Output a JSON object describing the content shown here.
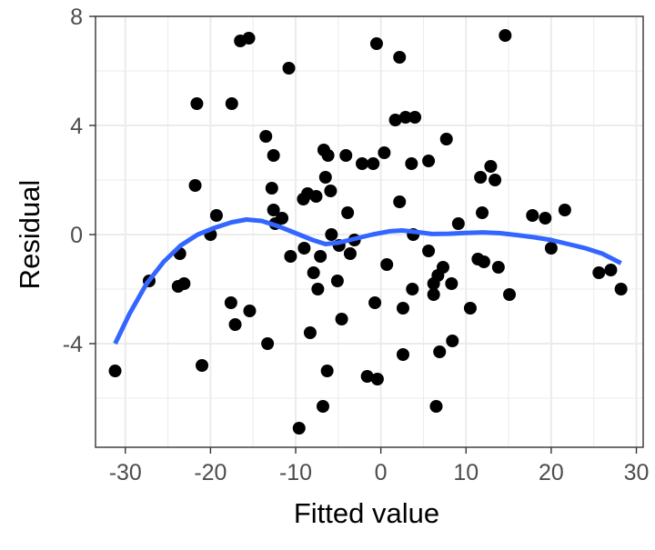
{
  "chart_data": {
    "type": "scatter",
    "xlabel": "Fitted value",
    "ylabel": "Residual",
    "xlim": [
      -33.5,
      30.8
    ],
    "ylim": [
      -7.8,
      8.0
    ],
    "x_ticks": [
      -30,
      -20,
      -10,
      0,
      10,
      20,
      30
    ],
    "x_tick_labels": [
      "-30",
      "-20",
      "-10",
      "0",
      "10",
      "20",
      "30"
    ],
    "y_ticks": [
      -4,
      0,
      4,
      8
    ],
    "y_tick_labels": [
      "-4",
      "0",
      "4",
      "8"
    ],
    "x_minor_gridlines": [
      -25,
      -15,
      -5,
      5,
      15,
      25
    ],
    "y_minor_gridlines": [
      -6,
      -2,
      2,
      6
    ],
    "grid": true,
    "legend": "none",
    "colors": {
      "points": "#000000",
      "smooth": "#3366FF",
      "grid": "#EBEBEB",
      "panel_border": "#333333"
    },
    "points": [
      {
        "x": -31.2,
        "y": -5.0
      },
      {
        "x": -27.2,
        "y": -1.7
      },
      {
        "x": -23.8,
        "y": -1.9
      },
      {
        "x": -23.6,
        "y": -0.7
      },
      {
        "x": -23.1,
        "y": -1.8
      },
      {
        "x": -21.8,
        "y": 1.8
      },
      {
        "x": -21.6,
        "y": 4.8
      },
      {
        "x": -21.0,
        "y": -4.8
      },
      {
        "x": -20.0,
        "y": 0.0
      },
      {
        "x": -19.3,
        "y": 0.7
      },
      {
        "x": -17.6,
        "y": -2.5
      },
      {
        "x": -17.5,
        "y": 4.8
      },
      {
        "x": -17.1,
        "y": -3.3
      },
      {
        "x": -16.5,
        "y": 7.1
      },
      {
        "x": -15.5,
        "y": 7.2
      },
      {
        "x": -15.4,
        "y": -2.8
      },
      {
        "x": -13.5,
        "y": 3.6
      },
      {
        "x": -13.3,
        "y": -4.0
      },
      {
        "x": -12.8,
        "y": 1.7
      },
      {
        "x": -12.6,
        "y": 2.9
      },
      {
        "x": -12.6,
        "y": 0.9
      },
      {
        "x": -12.4,
        "y": 0.4
      },
      {
        "x": -11.6,
        "y": 0.6
      },
      {
        "x": -10.8,
        "y": 6.1
      },
      {
        "x": -10.6,
        "y": -0.8
      },
      {
        "x": -9.6,
        "y": -7.1
      },
      {
        "x": -9.1,
        "y": 1.3
      },
      {
        "x": -9.0,
        "y": -0.5
      },
      {
        "x": -8.6,
        "y": 1.5
      },
      {
        "x": -8.3,
        "y": -3.6
      },
      {
        "x": -7.9,
        "y": -1.4
      },
      {
        "x": -7.6,
        "y": 1.4
      },
      {
        "x": -7.4,
        "y": -2.0
      },
      {
        "x": -7.1,
        "y": -0.8
      },
      {
        "x": -6.8,
        "y": -6.3
      },
      {
        "x": -6.7,
        "y": 3.1
      },
      {
        "x": -6.5,
        "y": 2.1
      },
      {
        "x": -6.3,
        "y": -5.0
      },
      {
        "x": -6.2,
        "y": 2.9
      },
      {
        "x": -5.9,
        "y": 1.6
      },
      {
        "x": -5.8,
        "y": 0.0
      },
      {
        "x": -5.1,
        "y": -1.7
      },
      {
        "x": -4.9,
        "y": -0.4
      },
      {
        "x": -4.6,
        "y": -3.1
      },
      {
        "x": -4.1,
        "y": 2.9
      },
      {
        "x": -3.9,
        "y": 0.8
      },
      {
        "x": -3.6,
        "y": -0.7
      },
      {
        "x": -3.1,
        "y": -0.2
      },
      {
        "x": -2.2,
        "y": 2.6
      },
      {
        "x": -1.6,
        "y": -5.2
      },
      {
        "x": -0.9,
        "y": 2.6
      },
      {
        "x": -0.7,
        "y": -2.5
      },
      {
        "x": -0.5,
        "y": 7.0
      },
      {
        "x": -0.4,
        "y": -5.3
      },
      {
        "x": 0.4,
        "y": 3.0
      },
      {
        "x": 0.7,
        "y": -1.1
      },
      {
        "x": 1.7,
        "y": 4.2
      },
      {
        "x": 2.2,
        "y": 6.5
      },
      {
        "x": 2.2,
        "y": 1.2
      },
      {
        "x": 2.6,
        "y": -2.7
      },
      {
        "x": 2.6,
        "y": -4.4
      },
      {
        "x": 2.9,
        "y": 4.3
      },
      {
        "x": 3.6,
        "y": 2.6
      },
      {
        "x": 3.7,
        "y": -2.0
      },
      {
        "x": 3.8,
        "y": 0.0
      },
      {
        "x": 4.0,
        "y": 4.3
      },
      {
        "x": 5.6,
        "y": -0.6
      },
      {
        "x": 5.6,
        "y": 2.7
      },
      {
        "x": 6.2,
        "y": -2.2
      },
      {
        "x": 6.2,
        "y": -1.8
      },
      {
        "x": 6.5,
        "y": -6.3
      },
      {
        "x": 6.7,
        "y": -1.5
      },
      {
        "x": 6.9,
        "y": -4.3
      },
      {
        "x": 7.3,
        "y": -1.2
      },
      {
        "x": 7.7,
        "y": 3.5
      },
      {
        "x": 8.3,
        "y": -1.8
      },
      {
        "x": 8.4,
        "y": -3.9
      },
      {
        "x": 9.1,
        "y": 0.4
      },
      {
        "x": 10.5,
        "y": -2.7
      },
      {
        "x": 11.4,
        "y": -0.9
      },
      {
        "x": 11.7,
        "y": 2.1
      },
      {
        "x": 11.9,
        "y": 0.8
      },
      {
        "x": 12.1,
        "y": -1.0
      },
      {
        "x": 12.9,
        "y": 2.5
      },
      {
        "x": 13.4,
        "y": 2.0
      },
      {
        "x": 13.8,
        "y": -1.2
      },
      {
        "x": 14.6,
        "y": 7.3
      },
      {
        "x": 15.1,
        "y": -2.2
      },
      {
        "x": 17.8,
        "y": 0.7
      },
      {
        "x": 19.3,
        "y": 0.6
      },
      {
        "x": 20.0,
        "y": -0.5
      },
      {
        "x": 21.6,
        "y": 0.9
      },
      {
        "x": 25.6,
        "y": -1.4
      },
      {
        "x": 27.0,
        "y": -1.3
      },
      {
        "x": 28.2,
        "y": -2.0
      }
    ],
    "smooth_line": [
      {
        "x": -31.2,
        "y": -4.0
      },
      {
        "x": -29.5,
        "y": -2.9
      },
      {
        "x": -27.5,
        "y": -1.8
      },
      {
        "x": -25.5,
        "y": -1.0
      },
      {
        "x": -23.5,
        "y": -0.4
      },
      {
        "x": -21.5,
        "y": 0.0
      },
      {
        "x": -19.5,
        "y": 0.25
      },
      {
        "x": -17.5,
        "y": 0.45
      },
      {
        "x": -15.8,
        "y": 0.55
      },
      {
        "x": -14.0,
        "y": 0.5
      },
      {
        "x": -12.0,
        "y": 0.3
      },
      {
        "x": -10.0,
        "y": 0.05
      },
      {
        "x": -8.0,
        "y": -0.2
      },
      {
        "x": -6.5,
        "y": -0.35
      },
      {
        "x": -5.0,
        "y": -0.3
      },
      {
        "x": -3.0,
        "y": -0.15
      },
      {
        "x": -1.0,
        "y": 0.0
      },
      {
        "x": 1.0,
        "y": 0.12
      },
      {
        "x": 2.5,
        "y": 0.15
      },
      {
        "x": 4.0,
        "y": 0.1
      },
      {
        "x": 6.0,
        "y": 0.02
      },
      {
        "x": 8.0,
        "y": 0.03
      },
      {
        "x": 10.0,
        "y": 0.06
      },
      {
        "x": 12.0,
        "y": 0.08
      },
      {
        "x": 14.0,
        "y": 0.05
      },
      {
        "x": 16.0,
        "y": -0.02
      },
      {
        "x": 18.0,
        "y": -0.1
      },
      {
        "x": 20.0,
        "y": -0.2
      },
      {
        "x": 22.0,
        "y": -0.35
      },
      {
        "x": 24.0,
        "y": -0.5
      },
      {
        "x": 26.0,
        "y": -0.7
      },
      {
        "x": 28.2,
        "y": -1.05
      }
    ]
  }
}
